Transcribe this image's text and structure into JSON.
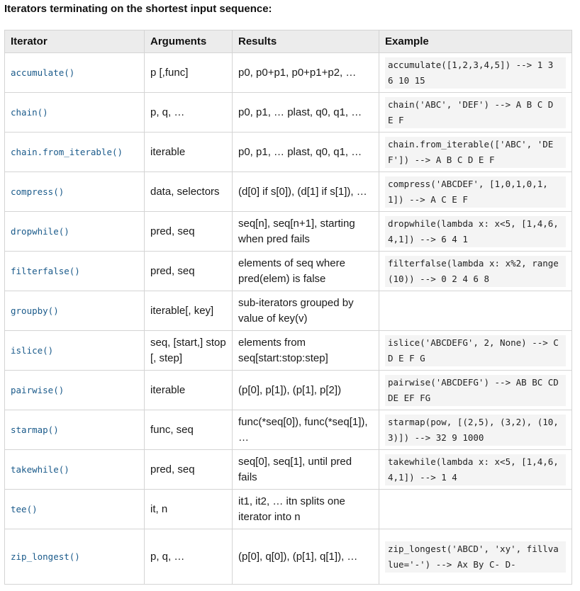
{
  "heading": "Iterators terminating on the shortest input sequence:",
  "columns": [
    "Iterator",
    "Arguments",
    "Results",
    "Example"
  ],
  "rows": [
    {
      "iterator": "accumulate()",
      "arguments": "p [,func]",
      "results": "p0, p0+p1, p0+p1+p2, …",
      "example": "accumulate([1,2,3,4,5]) --> 1 3 6 10 15"
    },
    {
      "iterator": "chain()",
      "arguments": "p, q, …",
      "results": "p0, p1, … plast, q0, q1, …",
      "example": "chain('ABC', 'DEF') --> A B C D E F"
    },
    {
      "iterator": "chain.from_iterable()",
      "arguments": "iterable",
      "results": "p0, p1, … plast, q0, q1, …",
      "example": "chain.from_iterable(['ABC', 'DEF']) --> A B C D E F"
    },
    {
      "iterator": "compress()",
      "arguments": "data, selectors",
      "results": "(d[0] if s[0]), (d[1] if s[1]), …",
      "example": "compress('ABCDEF', [1,0,1,0,1,1]) --> A C E F"
    },
    {
      "iterator": "dropwhile()",
      "arguments": "pred, seq",
      "results": "seq[n], seq[n+1], starting when pred fails",
      "example": "dropwhile(lambda x: x<5, [1,4,6,4,1]) --> 6 4 1"
    },
    {
      "iterator": "filterfalse()",
      "arguments": "pred, seq",
      "results": "elements of seq where pred(elem) is false",
      "example": "filterfalse(lambda x: x%2, range(10)) --> 0 2 4 6 8"
    },
    {
      "iterator": "groupby()",
      "arguments": "iterable[, key]",
      "results": "sub-iterators grouped by value of key(v)",
      "example": ""
    },
    {
      "iterator": "islice()",
      "arguments": "seq, [start,] stop [, step]",
      "results": "elements from seq[start:stop:step]",
      "example": "islice('ABCDEFG', 2, None) --> C D E F G"
    },
    {
      "iterator": "pairwise()",
      "arguments": "iterable",
      "results": "(p[0], p[1]), (p[1], p[2])",
      "example": "pairwise('ABCDEFG') --> AB BC CD DE EF FG"
    },
    {
      "iterator": "starmap()",
      "arguments": "func, seq",
      "results": "func(*seq[0]), func(*seq[1]), …",
      "example": "starmap(pow, [(2,5), (3,2), (10,3)]) --> 32 9 1000"
    },
    {
      "iterator": "takewhile()",
      "arguments": "pred, seq",
      "results": "seq[0], seq[1], until pred fails",
      "example": "takewhile(lambda x: x<5, [1,4,6,4,1]) --> 1 4"
    },
    {
      "iterator": "tee()",
      "arguments": "it, n",
      "results": "it1, it2, … itn splits one iterator into n",
      "example": ""
    },
    {
      "iterator": "zip_longest()",
      "arguments": "p, q, …",
      "results": "(p[0], q[0]), (p[1], q[1]), …",
      "example": "zip_longest('ABCD', 'xy', fillvalue='-') --> Ax By C- D-"
    }
  ]
}
